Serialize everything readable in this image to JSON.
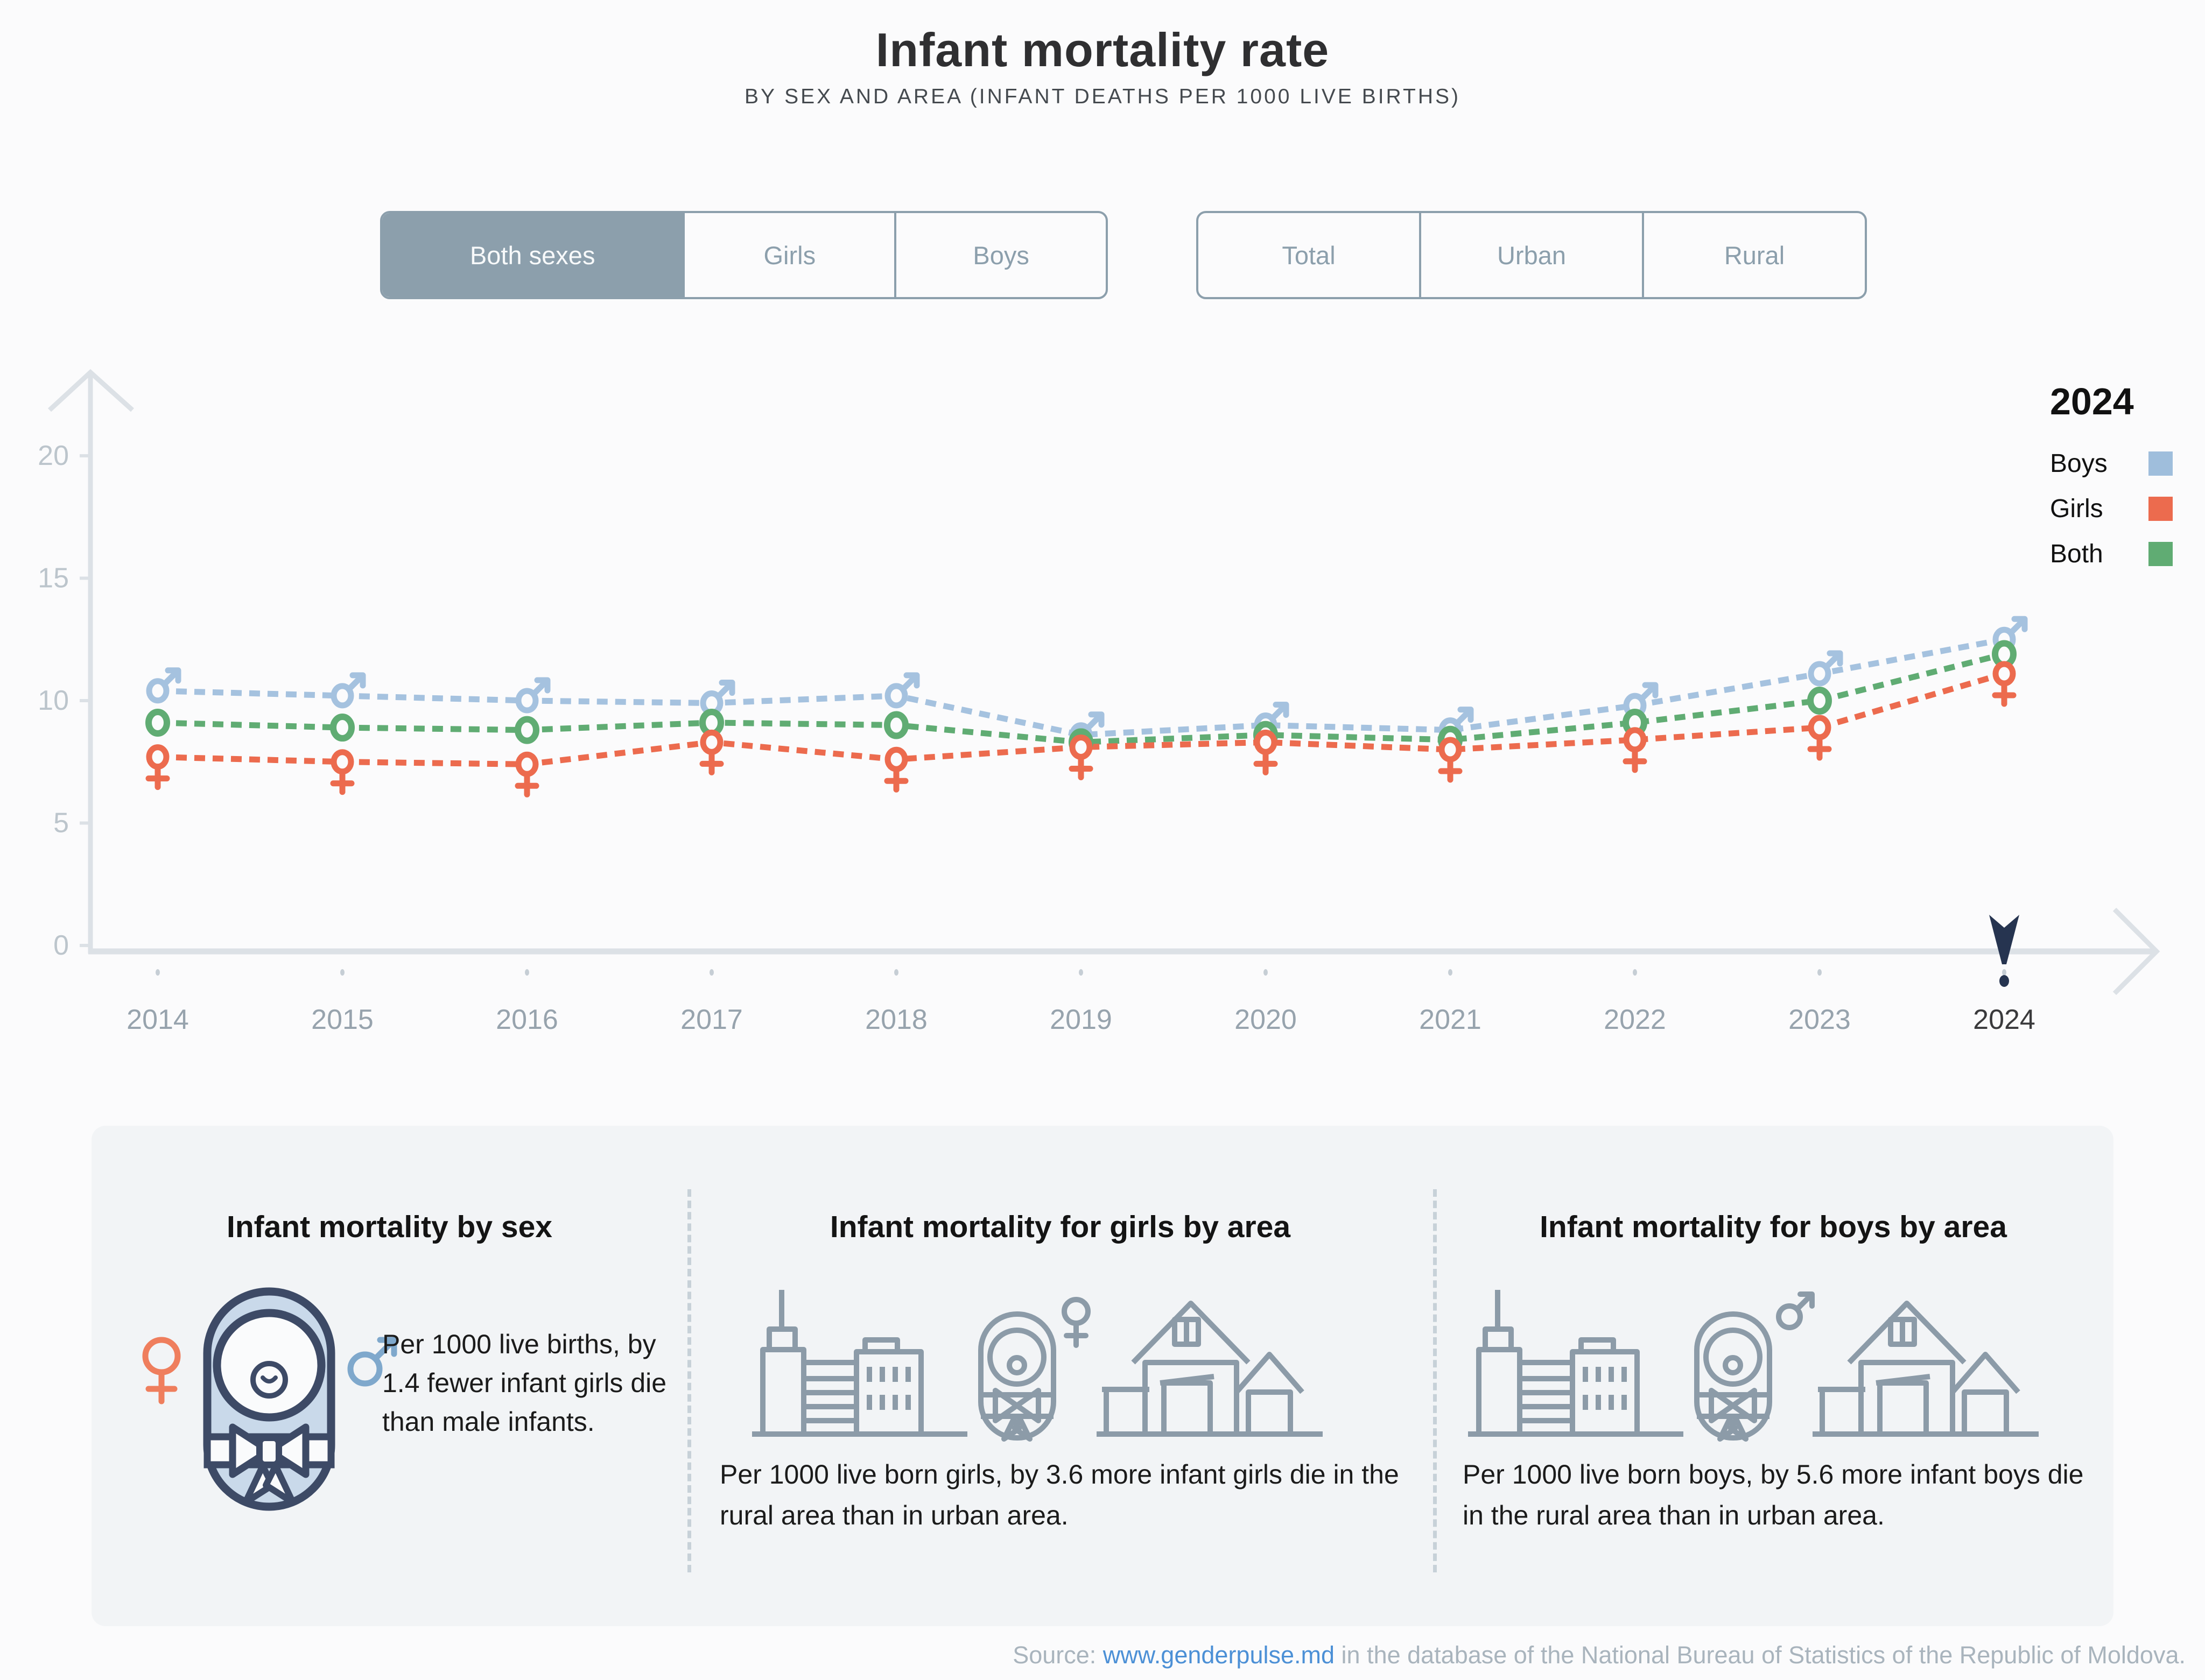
{
  "header": {
    "title": "Infant mortality rate",
    "subtitle": "BY SEX AND AREA (INFANT DEATHS PER 1000 LIVE BIRTHS)"
  },
  "toggles": {
    "sex": [
      {
        "label": "Both sexes",
        "active": true
      },
      {
        "label": "Girls",
        "active": false
      },
      {
        "label": "Boys",
        "active": false
      }
    ],
    "area": [
      {
        "label": "Total",
        "active": false
      },
      {
        "label": "Urban",
        "active": false
      },
      {
        "label": "Rural",
        "active": false
      }
    ]
  },
  "legend": {
    "year": "2024",
    "entries": [
      {
        "label": "Boys",
        "color": "#9FBEDC"
      },
      {
        "label": "Girls",
        "color": "#EC6B4E"
      },
      {
        "label": "Both",
        "color": "#60AC73"
      }
    ]
  },
  "chart_data": {
    "type": "line",
    "title": "Infant mortality rate by sex, total area, 2014-2024",
    "x": [
      2014,
      2015,
      2016,
      2017,
      2018,
      2019,
      2020,
      2021,
      2022,
      2023,
      2024
    ],
    "series": [
      {
        "name": "Boys",
        "marker": "male",
        "color": "#A5C2DF",
        "values": [
          10.4,
          10.2,
          10.0,
          9.9,
          10.2,
          8.6,
          9.0,
          8.8,
          9.8,
          11.1,
          12.5
        ]
      },
      {
        "name": "Both",
        "marker": "circle",
        "color": "#60AC73",
        "values": [
          9.1,
          8.9,
          8.8,
          9.1,
          9.0,
          8.3,
          8.6,
          8.4,
          9.1,
          10.0,
          11.9
        ]
      },
      {
        "name": "Girls",
        "marker": "female",
        "color": "#EC6B4E",
        "values": [
          7.7,
          7.5,
          7.4,
          8.3,
          7.6,
          8.1,
          8.3,
          8.0,
          8.4,
          8.9,
          11.1
        ]
      }
    ],
    "ylabel": "infant deaths per 1000 live births",
    "ylim": [
      0,
      20
    ],
    "yticks": [
      0,
      5,
      10,
      15,
      20
    ],
    "grid": false,
    "legend_position": "top-right",
    "highlighted_year": 2024,
    "axis_color": "#DCE1E6",
    "tick_label_color": "#BCC5CC",
    "year_label_color": "#97A3AD",
    "highlight_label_color": "#3A3A3C",
    "pointer_color": "#263450"
  },
  "cards": [
    {
      "title": "Infant mortality by sex",
      "text": "Per 1000 live births, by 1.4 fewer infant girls die than male infants.",
      "icons": [
        "female-icon",
        "baby-icon",
        "male-icon"
      ]
    },
    {
      "title": "Infant mortality for girls by area",
      "text": "Per 1000 live born girls, by 3.6 more infant girls die in the rural area than in urban area.",
      "icons": [
        "city-icon",
        "baby-icon",
        "female-icon",
        "house-icon"
      ]
    },
    {
      "title": "Infant mortality for boys by area",
      "text": "Per 1000 live born boys, by 5.6 more infant boys die in the rural area than in urban area.",
      "icons": [
        "city-icon",
        "baby-icon",
        "male-icon",
        "house-icon"
      ]
    }
  ],
  "icons": {
    "female-icon": "♀",
    "male-icon": "♂",
    "baby-icon": "swaddled-baby",
    "city-icon": "urban-buildings",
    "house-icon": "rural-house",
    "year-pointer-icon": "down-arrow-marker",
    "x-axis-arrow-icon": "right-chevron",
    "y-axis-arrow-icon": "up-chevron"
  },
  "source": {
    "prefix": "Source: ",
    "link": "www.genderpulse.md",
    "suffix": " in the database of the National Bureau of Statistics of the Republic of Moldova."
  }
}
